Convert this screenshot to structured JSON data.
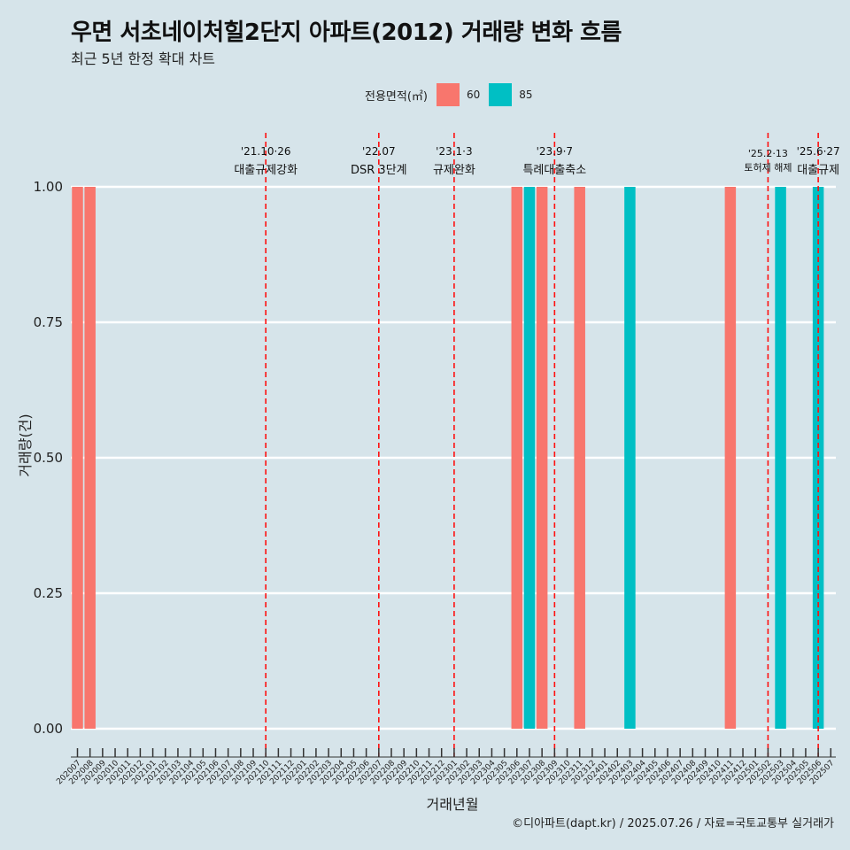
{
  "header": {
    "title": "우면 서초네이처힐2단지 아파트(2012) 거래량 변화 흐름",
    "subtitle": "최근 5년 한정 확대 차트"
  },
  "legend": {
    "title": "전용면적(㎡)",
    "items": [
      {
        "label": "60",
        "color": "#f8766d"
      },
      {
        "label": "85",
        "color": "#00bfc4"
      }
    ]
  },
  "caption": "©디아파트(dapt.kr) / 2025.07.26 / 자료=국토교통부 실거래가",
  "chart_data": {
    "type": "bar",
    "xlabel": "거래년월",
    "ylabel": "거래량(건)",
    "ylim": [
      0,
      1
    ],
    "yticks": [
      "0.00",
      "0.25",
      "0.50",
      "0.75",
      "1.00"
    ],
    "grid": "horizontal",
    "legend_position": "top",
    "categories": [
      "202007",
      "202008",
      "202009",
      "202010",
      "202011",
      "202012",
      "202101",
      "202102",
      "202103",
      "202104",
      "202105",
      "202106",
      "202107",
      "202108",
      "202109",
      "202110",
      "202111",
      "202112",
      "202201",
      "202202",
      "202203",
      "202204",
      "202205",
      "202206",
      "202207",
      "202208",
      "202209",
      "202210",
      "202211",
      "202212",
      "202301",
      "202302",
      "202303",
      "202304",
      "202305",
      "202306",
      "202307",
      "202308",
      "202309",
      "202310",
      "202311",
      "202312",
      "202401",
      "202402",
      "202403",
      "202404",
      "202405",
      "202406",
      "202407",
      "202408",
      "202409",
      "202410",
      "202411",
      "202412",
      "202501",
      "202502",
      "202503",
      "202504",
      "202505",
      "202506",
      "202507"
    ],
    "series": [
      {
        "name": "60",
        "color": "#f8766d",
        "points": [
          {
            "x": "202007",
            "y": 1
          },
          {
            "x": "202008",
            "y": 1
          },
          {
            "x": "202306",
            "y": 1
          },
          {
            "x": "202308",
            "y": 1
          },
          {
            "x": "202311",
            "y": 1
          },
          {
            "x": "202411",
            "y": 1
          }
        ]
      },
      {
        "name": "85",
        "color": "#00bfc4",
        "points": [
          {
            "x": "202307",
            "y": 1
          },
          {
            "x": "202403",
            "y": 1
          },
          {
            "x": "202503",
            "y": 1
          },
          {
            "x": "202506",
            "y": 1
          }
        ]
      }
    ],
    "annotations": [
      {
        "at": "202110",
        "date": "'21.10·26",
        "label": "대출규제강화"
      },
      {
        "at": "202207",
        "date": "'22.07",
        "label": "DSR 3단계"
      },
      {
        "at": "202301",
        "date": "'23.1·3",
        "label": "규제완화"
      },
      {
        "at": "202309",
        "date": "'23.9·7",
        "label": "특례대출축소"
      },
      {
        "at": "202502",
        "date": "'25.2·13",
        "label": "토허제 해제"
      },
      {
        "at": "202506",
        "date": "'25.6·27",
        "label": "대출규제"
      }
    ]
  }
}
